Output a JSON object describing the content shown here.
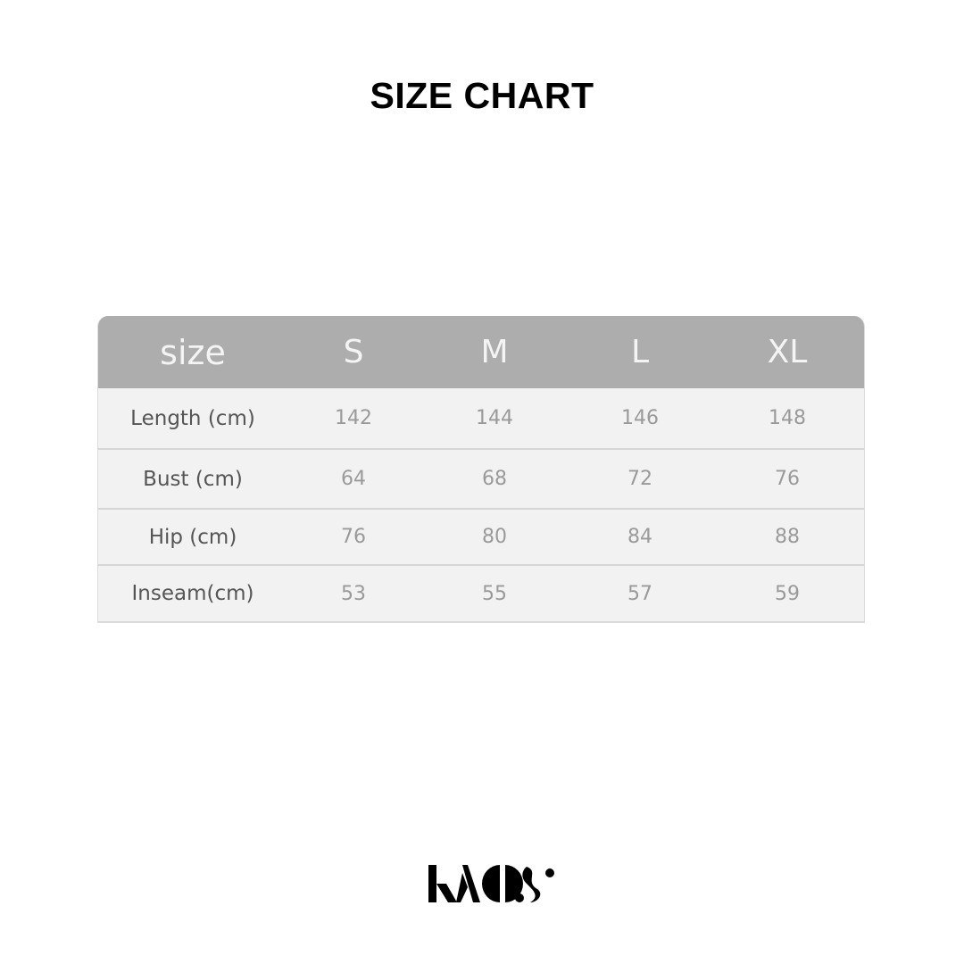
{
  "title": "SIZE CHART",
  "table": {
    "headers": [
      "size",
      "S",
      "M",
      "L",
      "XL"
    ],
    "rows": [
      [
        "Length (cm)",
        "142",
        "144",
        "146",
        "148"
      ],
      [
        "Bust (cm)",
        "64",
        "68",
        "72",
        "76"
      ],
      [
        "Hip (cm)",
        "76",
        "80",
        "84",
        "88"
      ],
      [
        "Inseam(cm)",
        "53",
        "55",
        "57",
        "59"
      ]
    ]
  },
  "logo": {
    "text": "KAOS"
  },
  "colors": {
    "header_bg": "#adadad",
    "row_bg": "#f2f2f2"
  }
}
